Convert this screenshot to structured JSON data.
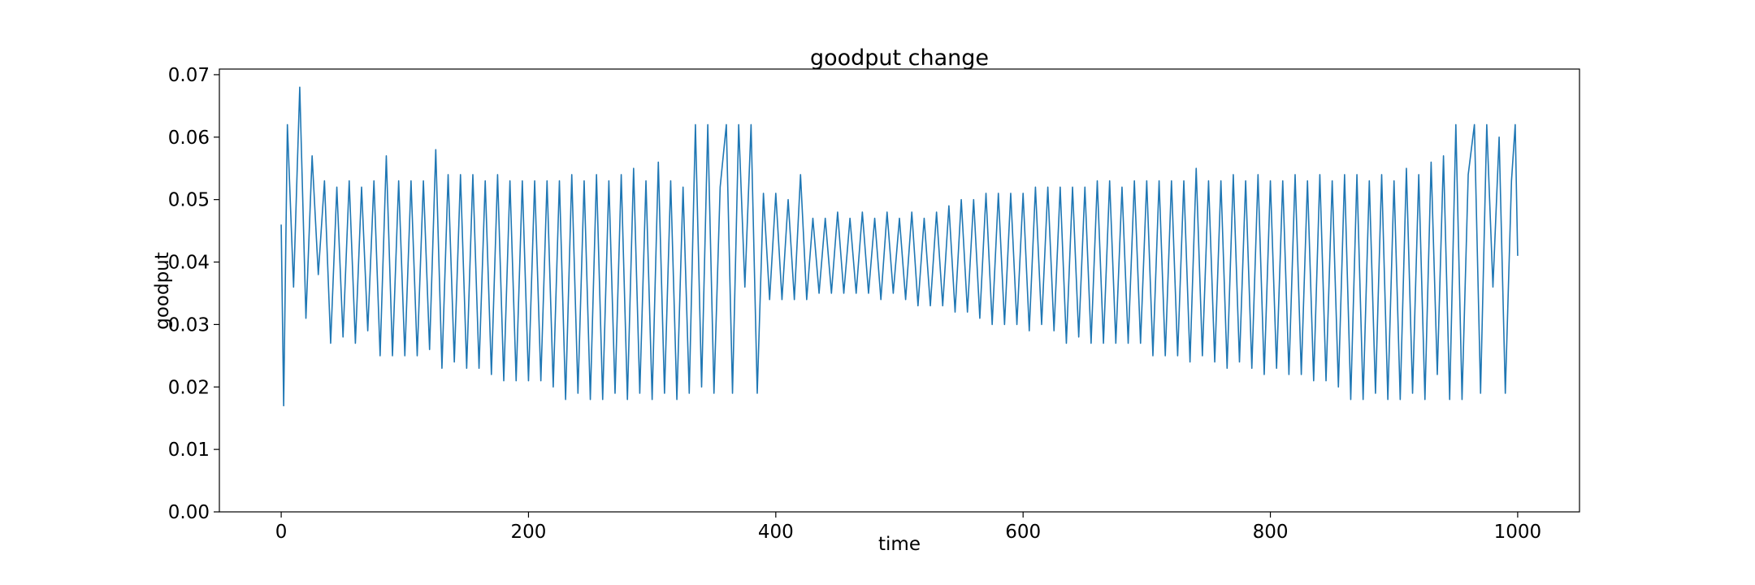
{
  "chart_data": {
    "type": "line",
    "title": "goodput change",
    "xlabel": "time",
    "ylabel": "goodput",
    "xlim": [
      -50,
      1050
    ],
    "xticks": [
      0,
      200,
      400,
      600,
      800,
      1000
    ],
    "ylim": [
      0,
      0.0709
    ],
    "yticks": [
      {
        "value": 0,
        "label": "0.00"
      },
      {
        "value": 0.01,
        "label": "0.01"
      },
      {
        "value": 0.02,
        "label": "0.02"
      },
      {
        "value": 0.03,
        "label": "0.03"
      },
      {
        "value": 0.04,
        "label": "0.04"
      },
      {
        "value": 0.05,
        "label": "0.05"
      },
      {
        "value": 0.06,
        "label": "0.06"
      },
      {
        "value": 0.07,
        "label": "0.07"
      }
    ],
    "grid": false,
    "x": [
      0,
      2,
      5,
      10,
      15,
      20,
      25,
      30,
      35,
      40,
      45,
      50,
      55,
      60,
      65,
      70,
      75,
      80,
      85,
      90,
      95,
      100,
      105,
      110,
      115,
      120,
      125,
      130,
      135,
      140,
      145,
      150,
      155,
      160,
      165,
      170,
      175,
      180,
      185,
      190,
      195,
      200,
      205,
      210,
      215,
      220,
      225,
      230,
      235,
      240,
      245,
      250,
      255,
      260,
      265,
      270,
      275,
      280,
      285,
      290,
      295,
      300,
      305,
      310,
      315,
      320,
      325,
      330,
      335,
      340,
      345,
      350,
      355,
      360,
      365,
      370,
      375,
      380,
      385,
      390,
      395,
      400,
      405,
      410,
      415,
      420,
      425,
      430,
      435,
      440,
      445,
      450,
      455,
      460,
      465,
      470,
      475,
      480,
      485,
      490,
      495,
      500,
      505,
      510,
      515,
      520,
      525,
      530,
      535,
      540,
      545,
      550,
      555,
      560,
      565,
      570,
      575,
      580,
      585,
      590,
      595,
      600,
      605,
      610,
      615,
      620,
      625,
      630,
      635,
      640,
      645,
      650,
      655,
      660,
      665,
      670,
      675,
      680,
      685,
      690,
      695,
      700,
      705,
      710,
      715,
      720,
      725,
      730,
      735,
      740,
      745,
      750,
      755,
      760,
      765,
      770,
      775,
      780,
      785,
      790,
      795,
      800,
      805,
      810,
      815,
      820,
      825,
      830,
      835,
      840,
      845,
      850,
      855,
      860,
      865,
      870,
      875,
      880,
      885,
      890,
      895,
      900,
      905,
      910,
      915,
      920,
      925,
      930,
      935,
      940,
      945,
      950,
      955,
      960,
      965,
      970,
      975,
      980,
      985,
      990,
      995,
      998,
      1000
    ],
    "series": [
      {
        "name": "goodput",
        "color": "#1f77b4",
        "values": [
          0.046,
          0.017,
          0.062,
          0.036,
          0.068,
          0.031,
          0.057,
          0.038,
          0.053,
          0.027,
          0.052,
          0.028,
          0.053,
          0.027,
          0.052,
          0.029,
          0.053,
          0.025,
          0.057,
          0.025,
          0.053,
          0.025,
          0.053,
          0.025,
          0.053,
          0.026,
          0.058,
          0.023,
          0.054,
          0.024,
          0.054,
          0.023,
          0.054,
          0.023,
          0.053,
          0.022,
          0.054,
          0.021,
          0.053,
          0.021,
          0.053,
          0.021,
          0.053,
          0.021,
          0.053,
          0.02,
          0.053,
          0.018,
          0.054,
          0.019,
          0.053,
          0.018,
          0.054,
          0.018,
          0.053,
          0.019,
          0.054,
          0.018,
          0.055,
          0.019,
          0.053,
          0.018,
          0.056,
          0.019,
          0.053,
          0.018,
          0.052,
          0.019,
          0.062,
          0.02,
          0.062,
          0.019,
          0.052,
          0.062,
          0.019,
          0.062,
          0.036,
          0.062,
          0.019,
          0.051,
          0.034,
          0.051,
          0.034,
          0.05,
          0.034,
          0.054,
          0.034,
          0.047,
          0.035,
          0.047,
          0.035,
          0.048,
          0.035,
          0.047,
          0.035,
          0.048,
          0.035,
          0.047,
          0.034,
          0.048,
          0.035,
          0.047,
          0.034,
          0.048,
          0.033,
          0.047,
          0.033,
          0.048,
          0.033,
          0.049,
          0.032,
          0.05,
          0.032,
          0.05,
          0.031,
          0.051,
          0.03,
          0.051,
          0.03,
          0.051,
          0.03,
          0.051,
          0.029,
          0.052,
          0.03,
          0.052,
          0.029,
          0.052,
          0.027,
          0.052,
          0.028,
          0.052,
          0.027,
          0.053,
          0.027,
          0.053,
          0.027,
          0.052,
          0.027,
          0.053,
          0.027,
          0.053,
          0.025,
          0.053,
          0.025,
          0.053,
          0.025,
          0.053,
          0.024,
          0.055,
          0.025,
          0.053,
          0.024,
          0.053,
          0.023,
          0.054,
          0.024,
          0.053,
          0.023,
          0.054,
          0.022,
          0.053,
          0.023,
          0.053,
          0.022,
          0.054,
          0.022,
          0.053,
          0.021,
          0.054,
          0.021,
          0.053,
          0.02,
          0.054,
          0.018,
          0.054,
          0.018,
          0.053,
          0.019,
          0.054,
          0.018,
          0.053,
          0.018,
          0.055,
          0.019,
          0.054,
          0.018,
          0.056,
          0.022,
          0.057,
          0.018,
          0.062,
          0.018,
          0.054,
          0.062,
          0.019,
          0.062,
          0.036,
          0.06,
          0.019,
          0.053,
          0.062,
          0.041
        ]
      }
    ]
  }
}
